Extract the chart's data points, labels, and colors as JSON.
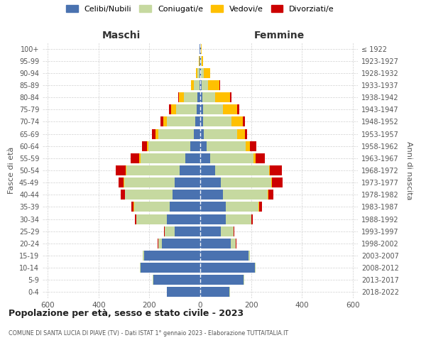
{
  "age_groups": [
    "0-4",
    "5-9",
    "10-14",
    "15-19",
    "20-24",
    "25-29",
    "30-34",
    "35-39",
    "40-44",
    "45-49",
    "50-54",
    "55-59",
    "60-64",
    "65-69",
    "70-74",
    "75-79",
    "80-84",
    "85-89",
    "90-94",
    "95-99",
    "100+"
  ],
  "birth_years": [
    "2018-2022",
    "2013-2017",
    "2008-2012",
    "2003-2007",
    "1998-2002",
    "1993-1997",
    "1988-1992",
    "1983-1987",
    "1978-1982",
    "1973-1977",
    "1968-1972",
    "1963-1967",
    "1958-1962",
    "1953-1957",
    "1948-1952",
    "1943-1947",
    "1938-1942",
    "1933-1937",
    "1928-1932",
    "1923-1927",
    "≤ 1922"
  ],
  "male": {
    "celibi": [
      130,
      185,
      235,
      220,
      150,
      100,
      130,
      120,
      110,
      100,
      80,
      60,
      40,
      25,
      20,
      15,
      10,
      4,
      3,
      2,
      2
    ],
    "coniugati": [
      2,
      2,
      2,
      5,
      15,
      40,
      120,
      140,
      185,
      200,
      210,
      175,
      165,
      140,
      110,
      80,
      55,
      20,
      8,
      2,
      1
    ],
    "vedovi": [
      0,
      0,
      0,
      0,
      0,
      1,
      1,
      2,
      2,
      2,
      3,
      4,
      5,
      10,
      15,
      20,
      18,
      12,
      5,
      1,
      0
    ],
    "divorziati": [
      0,
      0,
      0,
      0,
      2,
      2,
      5,
      10,
      15,
      20,
      40,
      35,
      20,
      15,
      12,
      8,
      4,
      0,
      0,
      0,
      0
    ]
  },
  "female": {
    "nubili": [
      115,
      170,
      215,
      190,
      120,
      80,
      100,
      100,
      90,
      80,
      60,
      40,
      25,
      15,
      12,
      10,
      8,
      5,
      3,
      2,
      2
    ],
    "coniugate": [
      1,
      2,
      3,
      5,
      20,
      50,
      100,
      130,
      175,
      200,
      210,
      170,
      155,
      130,
      110,
      80,
      50,
      25,
      10,
      3,
      1
    ],
    "vedove": [
      0,
      0,
      0,
      0,
      0,
      1,
      1,
      2,
      2,
      3,
      5,
      8,
      15,
      30,
      45,
      55,
      60,
      45,
      25,
      5,
      2
    ],
    "divorziate": [
      0,
      0,
      0,
      0,
      2,
      3,
      5,
      12,
      20,
      40,
      45,
      35,
      25,
      10,
      10,
      8,
      5,
      3,
      2,
      0,
      0
    ]
  },
  "colors": {
    "celibi": "#4a72b0",
    "coniugati": "#c6d9a0",
    "vedovi": "#ffc000",
    "divorziati": "#cc0000"
  },
  "legend_labels": [
    "Celibi/Nubili",
    "Coniugati/e",
    "Vedovi/e",
    "Divorziati/e"
  ],
  "xlim": 620,
  "title": "Popolazione per età, sesso e stato civile - 2023",
  "subtitle": "COMUNE DI SANTA LUCIA DI PIAVE (TV) - Dati ISTAT 1° gennaio 2023 - Elaborazione TUTTAITALIA.IT",
  "xlabel_left": "Maschi",
  "xlabel_right": "Femmine",
  "ylabel_left": "Fasce di età",
  "ylabel_right": "Anni di nascita",
  "bg_color": "#ffffff",
  "grid_color": "#cccccc"
}
